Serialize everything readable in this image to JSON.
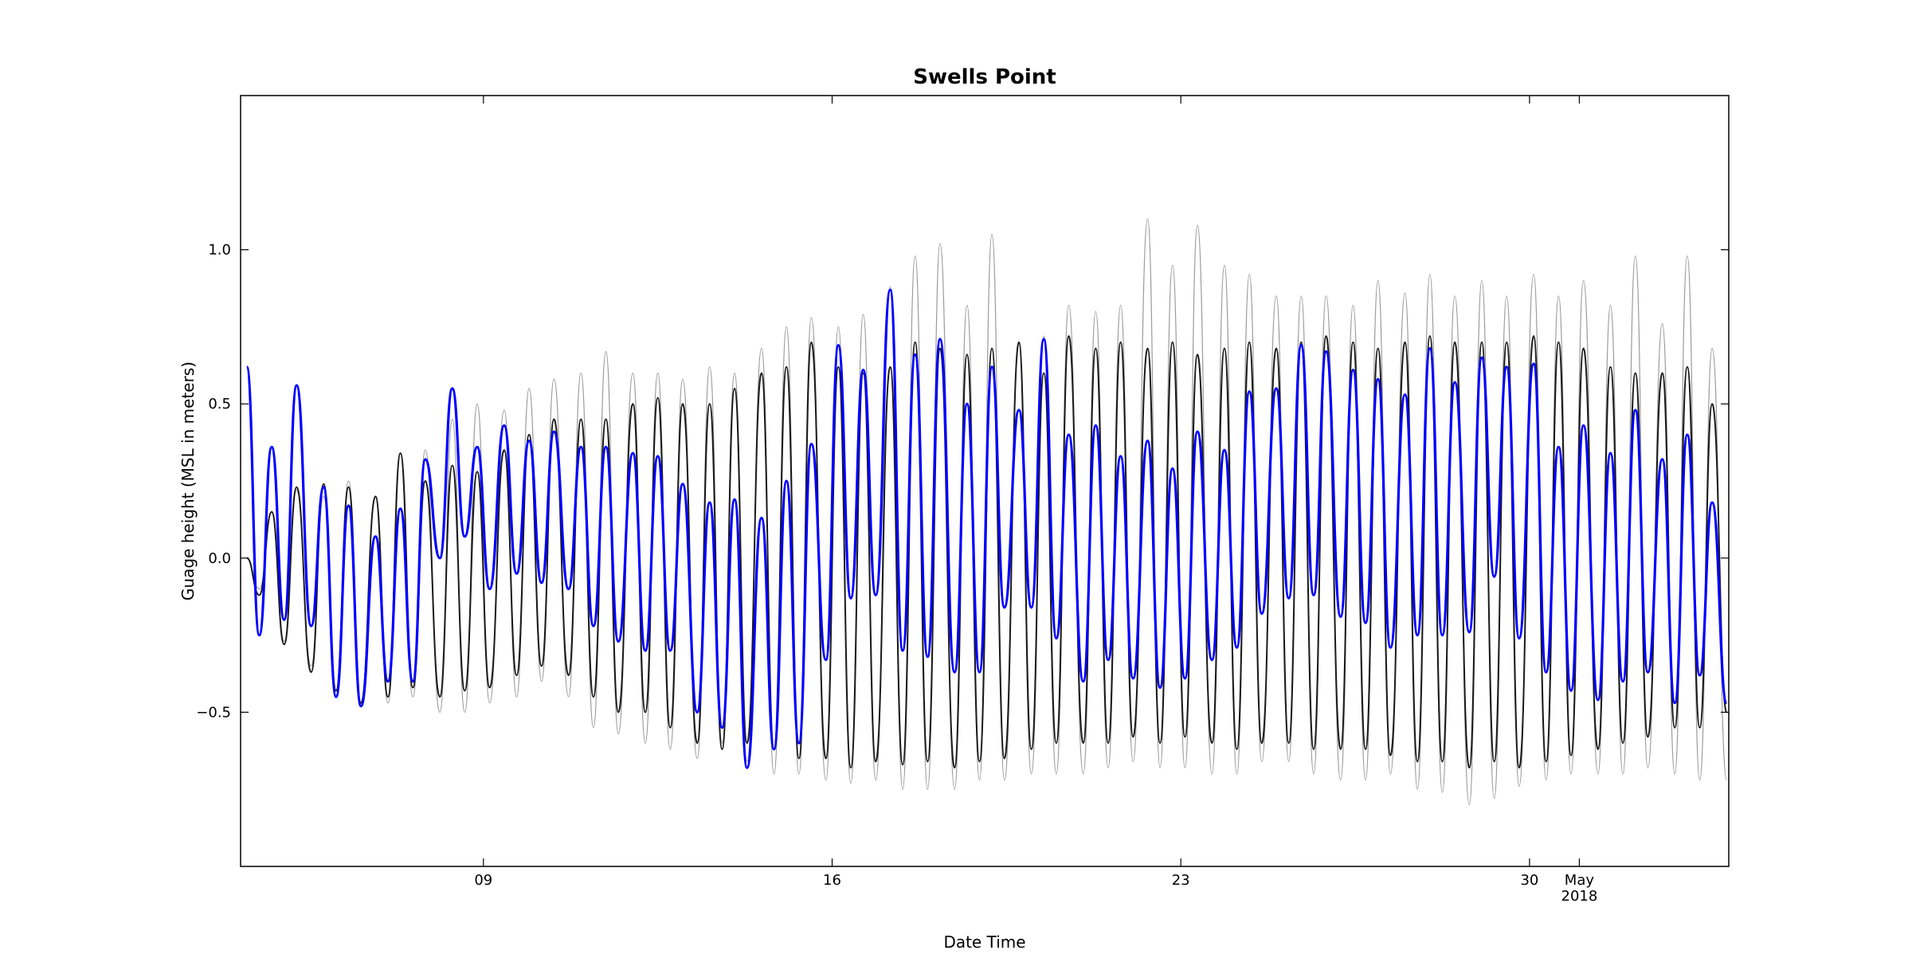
{
  "chart_data": {
    "type": "line",
    "title": "Swells Point",
    "x_label": "Date Time",
    "y_label": "Guage height (MSL in meters)",
    "xlim": [
      "2018-04-04 03:00",
      "2018-05-04 00:00"
    ],
    "xticks": [
      {
        "value": "2018-04-09 00:00",
        "label": "09"
      },
      {
        "value": "2018-04-16 00:00",
        "label": "16"
      },
      {
        "value": "2018-04-23 00:00",
        "label": "23"
      },
      {
        "value": "2018-04-30 00:00",
        "label": "30"
      },
      {
        "value": "2018-05-01 00:00",
        "label": "May\n2018"
      }
    ],
    "ylim": [
      -1.0,
      1.5
    ],
    "yticks": [
      {
        "value": -0.5,
        "label": "−0.5"
      },
      {
        "value": 0,
        "label": "0.0"
      },
      0.5,
      {
        "value": 1,
        "label": "1.0"
      }
    ],
    "x": [
      "2018-04-04 06:00",
      "2018-04-04 12:00",
      "2018-04-04 18:00",
      "2018-04-05 00:00",
      "2018-04-05 06:00",
      "2018-04-05 13:00",
      "2018-04-05 19:00",
      "2018-04-06 01:00",
      "2018-04-06 07:00",
      "2018-04-06 13:00",
      "2018-04-06 20:00",
      "2018-04-07 02:00",
      "2018-04-07 08:00",
      "2018-04-07 14:00",
      "2018-04-07 20:00",
      "2018-04-08 03:00",
      "2018-04-08 09:00",
      "2018-04-08 15:00",
      "2018-04-08 21:00",
      "2018-04-09 03:00",
      "2018-04-09 10:00",
      "2018-04-09 16:00",
      "2018-04-09 22:00",
      "2018-04-10 04:00",
      "2018-04-10 10:00",
      "2018-04-10 17:00",
      "2018-04-10 23:00",
      "2018-04-11 05:00",
      "2018-04-11 11:00",
      "2018-04-11 17:00",
      "2018-04-12 00:00",
      "2018-04-12 06:00",
      "2018-04-12 12:00",
      "2018-04-12 18:00",
      "2018-04-13 00:00",
      "2018-04-13 07:00",
      "2018-04-13 13:00",
      "2018-04-13 19:00",
      "2018-04-14 01:00",
      "2018-04-14 07:00",
      "2018-04-14 14:00",
      "2018-04-14 20:00",
      "2018-04-15 02:00",
      "2018-04-15 08:00",
      "2018-04-15 14:00",
      "2018-04-15 21:00",
      "2018-04-16 03:00",
      "2018-04-16 09:00",
      "2018-04-16 15:00",
      "2018-04-16 21:00",
      "2018-04-17 04:00",
      "2018-04-17 10:00",
      "2018-04-17 16:00",
      "2018-04-17 22:00",
      "2018-04-18 04:00",
      "2018-04-18 11:00",
      "2018-04-18 17:00",
      "2018-04-18 23:00",
      "2018-04-19 05:00",
      "2018-04-19 11:00",
      "2018-04-19 18:00",
      "2018-04-20 00:00",
      "2018-04-20 06:00",
      "2018-04-20 12:00",
      "2018-04-20 18:00",
      "2018-04-21 01:00",
      "2018-04-21 07:00",
      "2018-04-21 13:00",
      "2018-04-21 19:00",
      "2018-04-22 01:00",
      "2018-04-22 08:00",
      "2018-04-22 14:00",
      "2018-04-22 20:00",
      "2018-04-23 02:00",
      "2018-04-23 08:00",
      "2018-04-23 15:00",
      "2018-04-23 21:00",
      "2018-04-24 03:00",
      "2018-04-24 09:00",
      "2018-04-24 15:00",
      "2018-04-24 22:00",
      "2018-04-25 04:00",
      "2018-04-25 10:00",
      "2018-04-25 16:00",
      "2018-04-25 22:00",
      "2018-04-26 05:00",
      "2018-04-26 11:00",
      "2018-04-26 17:00",
      "2018-04-26 23:00",
      "2018-04-27 05:00",
      "2018-04-27 12:00",
      "2018-04-27 18:00",
      "2018-04-28 00:00",
      "2018-04-28 06:00",
      "2018-04-28 12:00",
      "2018-04-28 19:00",
      "2018-04-29 01:00",
      "2018-04-29 07:00",
      "2018-04-29 13:00",
      "2018-04-29 19:00",
      "2018-04-30 02:00",
      "2018-04-30 08:00",
      "2018-04-30 14:00",
      "2018-04-30 20:00",
      "2018-05-01 02:00",
      "2018-05-01 09:00",
      "2018-05-01 15:00",
      "2018-05-01 21:00",
      "2018-05-02 03:00",
      "2018-05-02 09:00",
      "2018-05-02 16:00",
      "2018-05-02 22:00",
      "2018-05-03 04:00",
      "2018-05-03 10:00",
      "2018-05-03 16:00",
      "2018-05-03 23:00"
    ],
    "series": [
      {
        "color": "#9a9a9a",
        "values": [
          0.0,
          -0.1,
          0.15,
          -0.27,
          0.22,
          -0.35,
          0.2,
          -0.45,
          0.25,
          -0.48,
          0.2,
          -0.47,
          0.34,
          -0.45,
          0.35,
          -0.5,
          0.45,
          -0.5,
          0.5,
          -0.47,
          0.48,
          -0.45,
          0.55,
          -0.4,
          0.58,
          -0.45,
          0.6,
          -0.55,
          0.67,
          -0.57,
          0.6,
          -0.6,
          0.6,
          -0.62,
          0.58,
          -0.65,
          0.62,
          -0.6,
          0.6,
          -0.66,
          0.68,
          -0.7,
          0.75,
          -0.7,
          0.78,
          -0.72,
          0.75,
          -0.73,
          0.79,
          -0.72,
          0.88,
          -0.75,
          0.98,
          -0.75,
          1.02,
          -0.75,
          0.82,
          -0.72,
          1.05,
          -0.72,
          0.7,
          -0.7,
          0.72,
          -0.7,
          0.82,
          -0.7,
          0.8,
          -0.68,
          0.82,
          -0.66,
          1.1,
          -0.68,
          0.95,
          -0.68,
          1.08,
          -0.7,
          0.95,
          -0.7,
          0.92,
          -0.66,
          0.85,
          -0.66,
          0.85,
          -0.7,
          0.85,
          -0.72,
          0.82,
          -0.72,
          0.9,
          -0.7,
          0.86,
          -0.75,
          0.92,
          -0.76,
          0.85,
          -0.8,
          0.9,
          -0.78,
          0.85,
          -0.74,
          0.92,
          -0.72,
          0.85,
          -0.7,
          0.9,
          -0.7,
          0.82,
          -0.7,
          0.98,
          -0.68,
          0.76,
          -0.7,
          0.98,
          -0.72,
          0.68,
          -0.72
        ]
      },
      {
        "color": "#1a1a1a",
        "values": [
          0.0,
          -0.12,
          0.15,
          -0.28,
          0.23,
          -0.37,
          0.24,
          -0.43,
          0.23,
          -0.47,
          0.2,
          -0.45,
          0.34,
          -0.42,
          0.25,
          -0.45,
          0.3,
          -0.43,
          0.28,
          -0.42,
          0.35,
          -0.38,
          0.4,
          -0.35,
          0.45,
          -0.38,
          0.45,
          -0.45,
          0.45,
          -0.5,
          0.5,
          -0.5,
          0.52,
          -0.55,
          0.5,
          -0.6,
          0.5,
          -0.62,
          0.55,
          -0.6,
          0.6,
          -0.62,
          0.62,
          -0.65,
          0.7,
          -0.65,
          0.62,
          -0.68,
          0.6,
          -0.66,
          0.62,
          -0.67,
          0.7,
          -0.66,
          0.68,
          -0.68,
          0.66,
          -0.66,
          0.68,
          -0.65,
          0.7,
          -0.62,
          0.6,
          -0.6,
          0.72,
          -0.6,
          0.68,
          -0.6,
          0.7,
          -0.58,
          0.68,
          -0.6,
          0.7,
          -0.58,
          0.66,
          -0.6,
          0.68,
          -0.62,
          0.7,
          -0.6,
          0.68,
          -0.6,
          0.7,
          -0.62,
          0.72,
          -0.62,
          0.7,
          -0.62,
          0.68,
          -0.64,
          0.7,
          -0.66,
          0.72,
          -0.66,
          0.7,
          -0.68,
          0.7,
          -0.66,
          0.7,
          -0.68,
          0.72,
          -0.66,
          0.7,
          -0.64,
          0.68,
          -0.62,
          0.62,
          -0.6,
          0.6,
          -0.58,
          0.6,
          -0.55,
          0.62,
          -0.55,
          0.5,
          -0.5
        ]
      },
      {
        "color": "#0000ff",
        "values": [
          0.62,
          -0.25,
          0.36,
          -0.2,
          0.56,
          -0.22,
          0.23,
          -0.45,
          0.17,
          -0.48,
          0.07,
          -0.4,
          0.16,
          -0.4,
          0.32,
          0.0,
          0.55,
          0.07,
          0.36,
          -0.1,
          0.43,
          -0.05,
          0.38,
          -0.08,
          0.41,
          -0.1,
          0.36,
          -0.22,
          0.36,
          -0.27,
          0.34,
          -0.3,
          0.33,
          -0.3,
          0.24,
          -0.5,
          0.18,
          -0.55,
          0.19,
          -0.68,
          0.13,
          -0.62,
          0.25,
          -0.6,
          0.37,
          -0.33,
          0.69,
          -0.13,
          0.61,
          -0.12,
          0.87,
          -0.3,
          0.66,
          -0.32,
          0.71,
          -0.37,
          0.5,
          -0.37,
          0.62,
          -0.16,
          0.48,
          -0.16,
          0.71,
          -0.26,
          0.4,
          -0.4,
          0.43,
          -0.33,
          0.33,
          -0.39,
          0.38,
          -0.42,
          0.29,
          -0.39,
          0.41,
          -0.33,
          0.35,
          -0.29,
          0.54,
          -0.18,
          0.55,
          -0.13,
          0.69,
          -0.12,
          0.67,
          -0.19,
          0.61,
          -0.21,
          0.58,
          -0.29,
          0.53,
          -0.25,
          0.68,
          -0.25,
          0.57,
          -0.24,
          0.65,
          -0.06,
          0.62,
          -0.26,
          0.63,
          -0.37,
          0.36,
          -0.43,
          0.43,
          -0.46,
          0.34,
          -0.4,
          0.48,
          -0.37,
          0.32,
          -0.47,
          0.4,
          -0.38,
          0.18,
          -0.47
        ]
      }
    ]
  }
}
